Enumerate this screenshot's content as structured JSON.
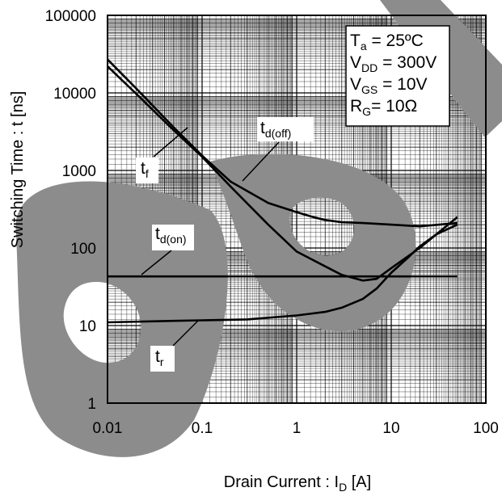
{
  "chart_data": {
    "type": "line",
    "xscale": "log",
    "yscale": "log",
    "xlim": [
      0.01,
      100
    ],
    "ylim": [
      1,
      100000
    ],
    "grid": true,
    "x_ticks": [
      "0.01",
      "0.1",
      "1",
      "10",
      "100"
    ],
    "y_ticks": [
      "1",
      "10",
      "100",
      "1000",
      "10000",
      "100000"
    ],
    "xlabel": {
      "main": "Drain Current : I",
      "sub": "D",
      "suffix": " [A]"
    },
    "ylabel": "Switching Time : t [ns]",
    "conditions": [
      {
        "main": "T",
        "sub": "a",
        "suffix": " = 25ºC"
      },
      {
        "main": "V",
        "sub": "DD",
        "suffix": " = 300V"
      },
      {
        "main": "V",
        "sub": "GS",
        "suffix": " = 10V"
      },
      {
        "main": "R",
        "sub": "G",
        "suffix": "= 10Ω"
      }
    ],
    "series": [
      {
        "name": "t_f",
        "label": {
          "main": "t",
          "sub": "f"
        },
        "x": [
          0.01,
          0.02,
          0.05,
          0.1,
          0.2,
          0.5,
          1,
          1.5,
          2,
          3,
          5,
          10,
          20,
          50
        ],
        "y": [
          27000,
          11500,
          3600,
          1550,
          720,
          380,
          290,
          250,
          230,
          215,
          210,
          200,
          190,
          210
        ]
      },
      {
        "name": "t_d(off)",
        "label": {
          "main": "t",
          "sub": "d(off)"
        },
        "x": [
          0.01,
          0.02,
          0.05,
          0.1,
          0.2,
          0.5,
          1,
          2,
          3,
          5,
          7,
          10,
          20,
          50
        ],
        "y": [
          22000,
          9800,
          3300,
          1500,
          620,
          200,
          90,
          58,
          45,
          38,
          40,
          55,
          100,
          250
        ]
      },
      {
        "name": "t_d(on)",
        "label": {
          "main": "t",
          "sub": "d(on)"
        },
        "x": [
          0.01,
          0.1,
          1,
          10,
          50
        ],
        "y": [
          43,
          43,
          43,
          43,
          43
        ]
      },
      {
        "name": "t_r",
        "label": {
          "main": "t",
          "sub": "r"
        },
        "x": [
          0.01,
          0.05,
          0.1,
          0.3,
          1,
          2,
          3,
          5,
          7,
          10,
          15,
          20,
          30,
          50
        ],
        "y": [
          11,
          11.5,
          11.7,
          12,
          13.5,
          15,
          17,
          22,
          30,
          48,
          75,
          105,
          150,
          200
        ]
      }
    ]
  }
}
